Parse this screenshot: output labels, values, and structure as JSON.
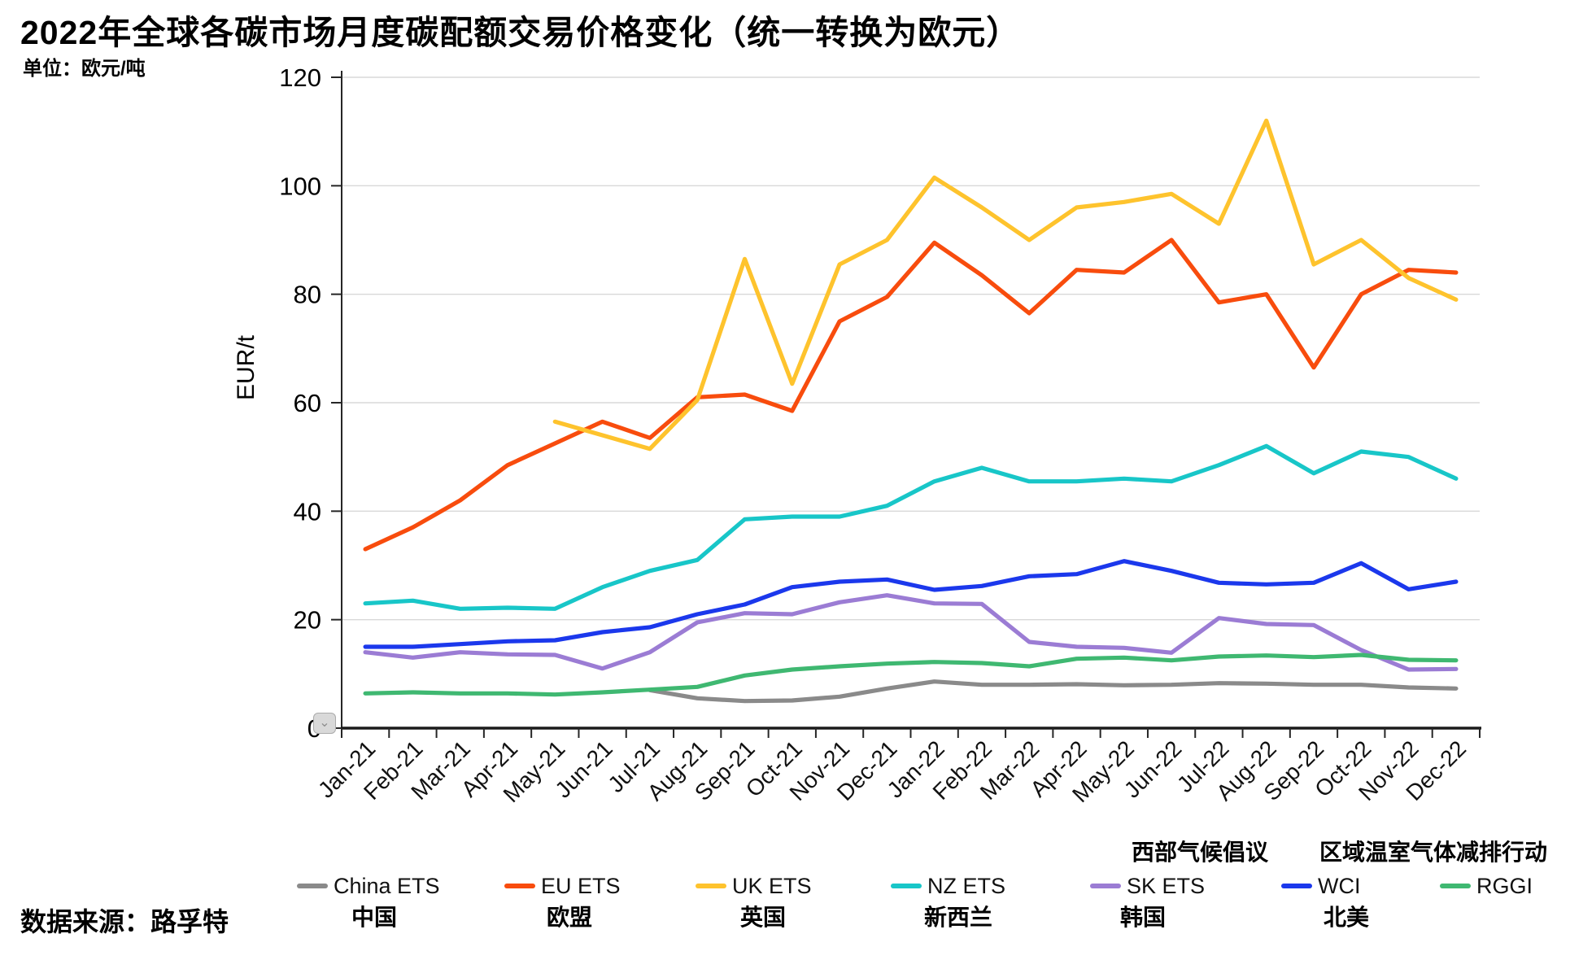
{
  "page": {
    "title": "2022年全球各碳市场月度碳配额交易价格变化（统一转换为欧元）",
    "unit_label": "单位：欧元/吨",
    "source": "数据来源：路孚特"
  },
  "artifact": {
    "chevron_icon": "⌄"
  },
  "chart_data": {
    "type": "line",
    "title": "2022年全球各碳市场月度碳配额交易价格变化（统一转换为欧元）",
    "xlabel": "",
    "ylabel": "EUR/t",
    "ylim": [
      0,
      120
    ],
    "yticks": [
      0,
      20,
      40,
      60,
      80,
      100,
      120
    ],
    "grid": true,
    "legend_position": "bottom",
    "x": [
      "Jan-21",
      "Feb-21",
      "Mar-21",
      "Apr-21",
      "May-21",
      "Jun-21",
      "Jul-21",
      "Aug-21",
      "Sep-21",
      "Oct-21",
      "Nov-21",
      "Dec-21",
      "Jan-22",
      "Feb-22",
      "Mar-22",
      "Apr-22",
      "May-22",
      "Jun-22",
      "Jul-22",
      "Aug-22",
      "Sep-22",
      "Oct-22",
      "Nov-22",
      "Dec-22"
    ],
    "series": [
      {
        "name": "China ETS",
        "cn": "中国",
        "cn_top": "",
        "color": "#8A8A8A",
        "values": [
          null,
          null,
          null,
          null,
          null,
          null,
          7,
          5.5,
          5,
          5.1,
          5.8,
          7.3,
          8.6,
          8,
          8,
          8.1,
          7.9,
          8,
          8.3,
          8.2,
          8,
          8,
          7.5,
          7.3
        ]
      },
      {
        "name": "EU ETS",
        "cn": "欧盟",
        "cn_top": "",
        "color": "#F84C0D",
        "values": [
          33,
          37,
          42,
          48.5,
          52.5,
          56.5,
          53.5,
          61,
          61.5,
          58.5,
          75,
          79.5,
          89.5,
          83.5,
          76.5,
          84.5,
          84,
          90,
          78.5,
          80,
          66.5,
          80,
          84.5,
          84
        ]
      },
      {
        "name": "UK ETS",
        "cn": "英国",
        "cn_top": "",
        "color": "#FEC32D",
        "values": [
          null,
          null,
          null,
          null,
          56.5,
          54,
          51.5,
          60.5,
          86.5,
          63.5,
          85.5,
          90,
          101.5,
          96,
          90,
          96,
          97,
          98.5,
          93,
          112,
          85.5,
          90,
          83,
          79
        ]
      },
      {
        "name": "NZ ETS",
        "cn": "新西兰",
        "cn_top": "",
        "color": "#18C6C8",
        "values": [
          23,
          23.5,
          22,
          22.2,
          22,
          26,
          29,
          31,
          38.5,
          39,
          39,
          41,
          45.5,
          48,
          45.5,
          45.5,
          46,
          45.5,
          48.5,
          52,
          47,
          51,
          50,
          46
        ]
      },
      {
        "name": "SK ETS",
        "cn": "韩国",
        "cn_top": "",
        "color": "#9B7CD4",
        "values": [
          14,
          13,
          14,
          13.6,
          13.5,
          11,
          14,
          19.5,
          21.2,
          21,
          23.2,
          24.5,
          23,
          22.9,
          15.9,
          15,
          14.8,
          13.9,
          20.3,
          19.2,
          19,
          14.4,
          10.8,
          10.9
        ]
      },
      {
        "name": "WCI",
        "cn": "北美",
        "cn_top": "西部气候倡议",
        "color": "#1B38EC",
        "values": [
          15,
          15,
          15.5,
          16,
          16.2,
          17.7,
          18.6,
          21,
          22.8,
          26,
          27,
          27.4,
          25.5,
          26.2,
          28,
          28.4,
          30.8,
          29,
          26.8,
          26.5,
          26.8,
          30.4,
          25.6,
          27
        ]
      },
      {
        "name": "RGGI",
        "cn": "",
        "cn_top": "区域温室气体减排行动",
        "color": "#3FB871",
        "values": [
          6.4,
          6.6,
          6.4,
          6.4,
          6.2,
          6.6,
          7.1,
          7.6,
          9.7,
          10.8,
          11.4,
          11.9,
          12.2,
          12,
          11.4,
          12.8,
          13,
          12.5,
          13.2,
          13.4,
          13.1,
          13.5,
          12.6,
          12.5
        ]
      }
    ]
  }
}
